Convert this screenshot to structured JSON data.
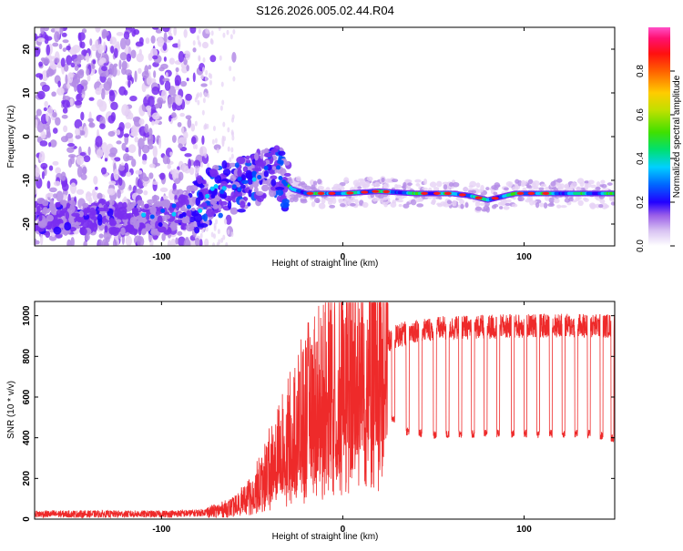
{
  "title": "S126.2026.005.02.44.R04",
  "chart_data": [
    {
      "type": "heatmap",
      "xlabel": "Height of straight line (km)",
      "ylabel": "Frequency (Hz)",
      "xlim": [
        -170,
        150
      ],
      "ylim": [
        -25,
        25
      ],
      "x_ticks": [
        -100,
        0,
        100
      ],
      "y_ticks": [
        -20,
        -10,
        0,
        10,
        20
      ],
      "colorbar": {
        "label": "Normalized spectral amplitude",
        "range": [
          0,
          1
        ],
        "ticks": [
          0.0,
          0.2,
          0.4,
          0.6,
          0.8
        ],
        "colormap": [
          "#ffffff",
          "#e6d2f5",
          "#b48ce6",
          "#7a2ff0",
          "#2a00ff",
          "#0050ff",
          "#00c8ff",
          "#00e08a",
          "#38e000",
          "#b4e000",
          "#ffd000",
          "#ff7000",
          "#ff1a1a",
          "#ff1a7a",
          "#ff4fc0"
        ]
      },
      "ridge_line": {
        "x": [
          -170,
          -150,
          -120,
          -100,
          -85,
          -75,
          -65,
          -55,
          -45,
          -38,
          -33,
          -28,
          -20,
          0,
          20,
          40,
          60,
          70,
          80,
          95,
          120,
          150
        ],
        "y": [
          -18,
          -18.5,
          -18.5,
          -18.5,
          -17,
          -14,
          -12,
          -11,
          -9,
          -7,
          -10,
          -12,
          -13,
          -13,
          -12.5,
          -13,
          -13,
          -13.5,
          -14.5,
          -13,
          -13,
          -13
        ]
      }
    },
    {
      "type": "line",
      "xlabel": "Height of straight line (km)",
      "ylabel": "SNR (10 * v/v)",
      "xlim": [
        -170,
        150
      ],
      "ylim": [
        0,
        1070
      ],
      "x_ticks": [
        -100,
        0,
        100
      ],
      "y_ticks": [
        0,
        200,
        400,
        600,
        800,
        1000
      ],
      "line_color": "#ee2a2a",
      "envelope": {
        "x": [
          -170,
          -100,
          -80,
          -70,
          -60,
          -50,
          -40,
          -30,
          -20,
          -10,
          0,
          10,
          20,
          25,
          30,
          40,
          60,
          80,
          100,
          120,
          150
        ],
        "y": [
          25,
          25,
          30,
          40,
          60,
          120,
          250,
          380,
          520,
          620,
          680,
          740,
          820,
          870,
          900,
          930,
          940,
          945,
          950,
          950,
          950
        ]
      },
      "dropouts": {
        "x": [
          27,
          35,
          42,
          50,
          57,
          64,
          71,
          78,
          85,
          93,
          100,
          107,
          114,
          121,
          128,
          135,
          142,
          148
        ],
        "low": [
          470,
          410,
          400,
          395,
          395,
          395,
          400,
          400,
          400,
          400,
          400,
          400,
          400,
          400,
          400,
          400,
          390,
          380
        ]
      }
    }
  ]
}
